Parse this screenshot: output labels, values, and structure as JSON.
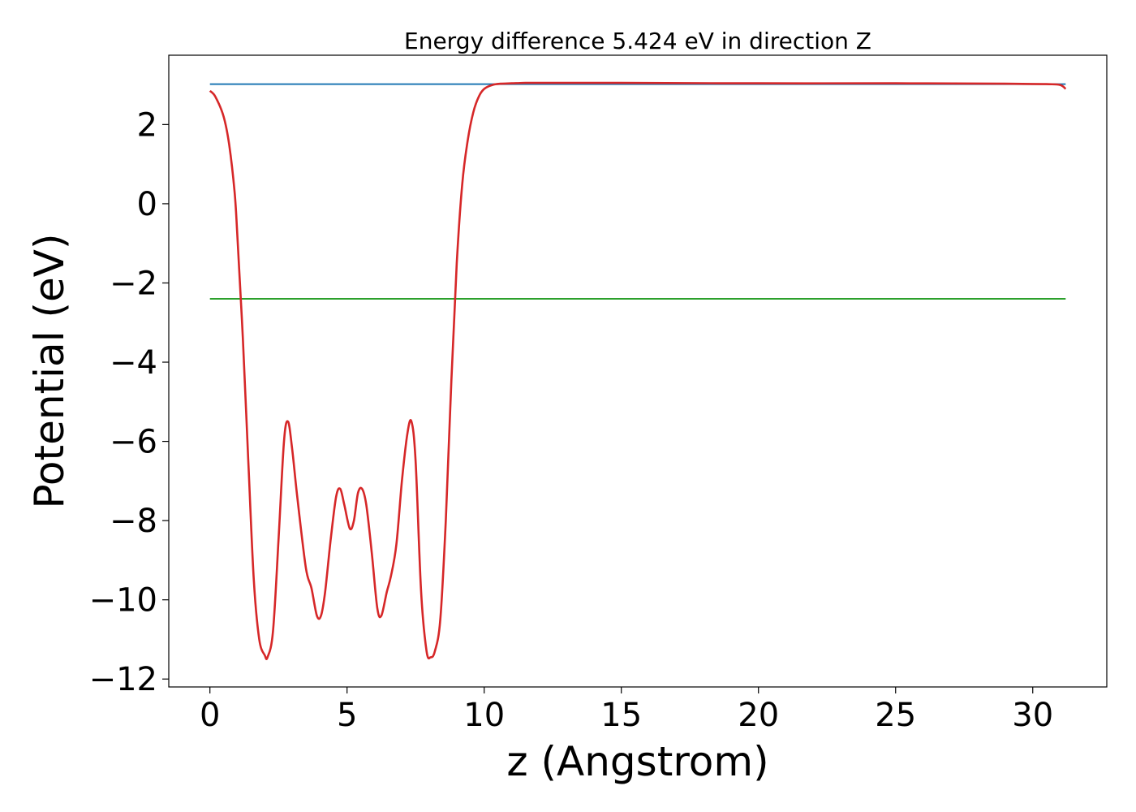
{
  "chart_data": {
    "type": "line",
    "title": "Energy difference 5.424 eV in direction Z",
    "xlabel": "z (Angstrom)",
    "ylabel": "Potential (eV)",
    "xlim": [
      -1.5,
      32.7
    ],
    "ylim": [
      -12.2,
      3.75
    ],
    "grid": false,
    "xticks": [
      0,
      5,
      10,
      15,
      20,
      25,
      30
    ],
    "yticks": [
      -12,
      -10,
      -8,
      -6,
      -4,
      -2,
      0,
      2
    ],
    "xtick_labels": [
      "0",
      "5",
      "10",
      "15",
      "20",
      "25",
      "30"
    ],
    "ytick_labels": [
      "−12",
      "−10",
      "−8",
      "−6",
      "−4",
      "−2",
      "0",
      "2"
    ],
    "series": [
      {
        "color": "#1f77b4",
        "x": [
          0,
          31.2
        ],
        "y": [
          3.02,
          3.02
        ]
      },
      {
        "color": "#2ca02c",
        "x": [
          0,
          31.2
        ],
        "y": [
          -2.4,
          -2.4
        ]
      },
      {
        "color": "#d62728",
        "x": [
          0,
          0.2,
          0.5,
          0.7,
          0.9,
          1.0,
          1.2,
          1.4,
          1.6,
          1.8,
          2.0,
          2.1,
          2.3,
          2.5,
          2.7,
          2.85,
          3.0,
          3.2,
          3.5,
          3.7,
          3.9,
          4.05,
          4.2,
          4.4,
          4.6,
          4.75,
          4.9,
          5.1,
          5.25,
          5.4,
          5.55,
          5.7,
          5.9,
          6.1,
          6.25,
          6.45,
          6.6,
          6.8,
          7.0,
          7.2,
          7.35,
          7.5,
          7.7,
          7.9,
          8.05,
          8.2,
          8.4,
          8.6,
          8.8,
          9.0,
          9.2,
          9.4,
          9.6,
          9.8,
          10.0,
          10.3,
          10.6,
          11.0,
          11.5,
          12.0,
          15.0,
          20.0,
          25.0,
          29.0,
          30.5,
          31.0,
          31.2
        ],
        "y": [
          2.85,
          2.7,
          2.2,
          1.5,
          0.3,
          -0.8,
          -3.4,
          -6.5,
          -9.5,
          -11.0,
          -11.4,
          -11.45,
          -10.8,
          -8.5,
          -6.0,
          -5.5,
          -6.2,
          -7.5,
          -9.2,
          -9.7,
          -10.4,
          -10.4,
          -9.8,
          -8.5,
          -7.4,
          -7.2,
          -7.6,
          -8.2,
          -8.0,
          -7.3,
          -7.2,
          -7.6,
          -8.8,
          -10.2,
          -10.4,
          -9.8,
          -9.4,
          -8.6,
          -7.0,
          -5.8,
          -5.5,
          -6.5,
          -9.8,
          -11.3,
          -11.45,
          -11.3,
          -10.5,
          -8.0,
          -4.5,
          -1.5,
          0.5,
          1.6,
          2.3,
          2.7,
          2.9,
          3.0,
          3.03,
          3.04,
          3.05,
          3.05,
          3.05,
          3.04,
          3.04,
          3.03,
          3.02,
          3.0,
          2.9
        ]
      }
    ]
  }
}
